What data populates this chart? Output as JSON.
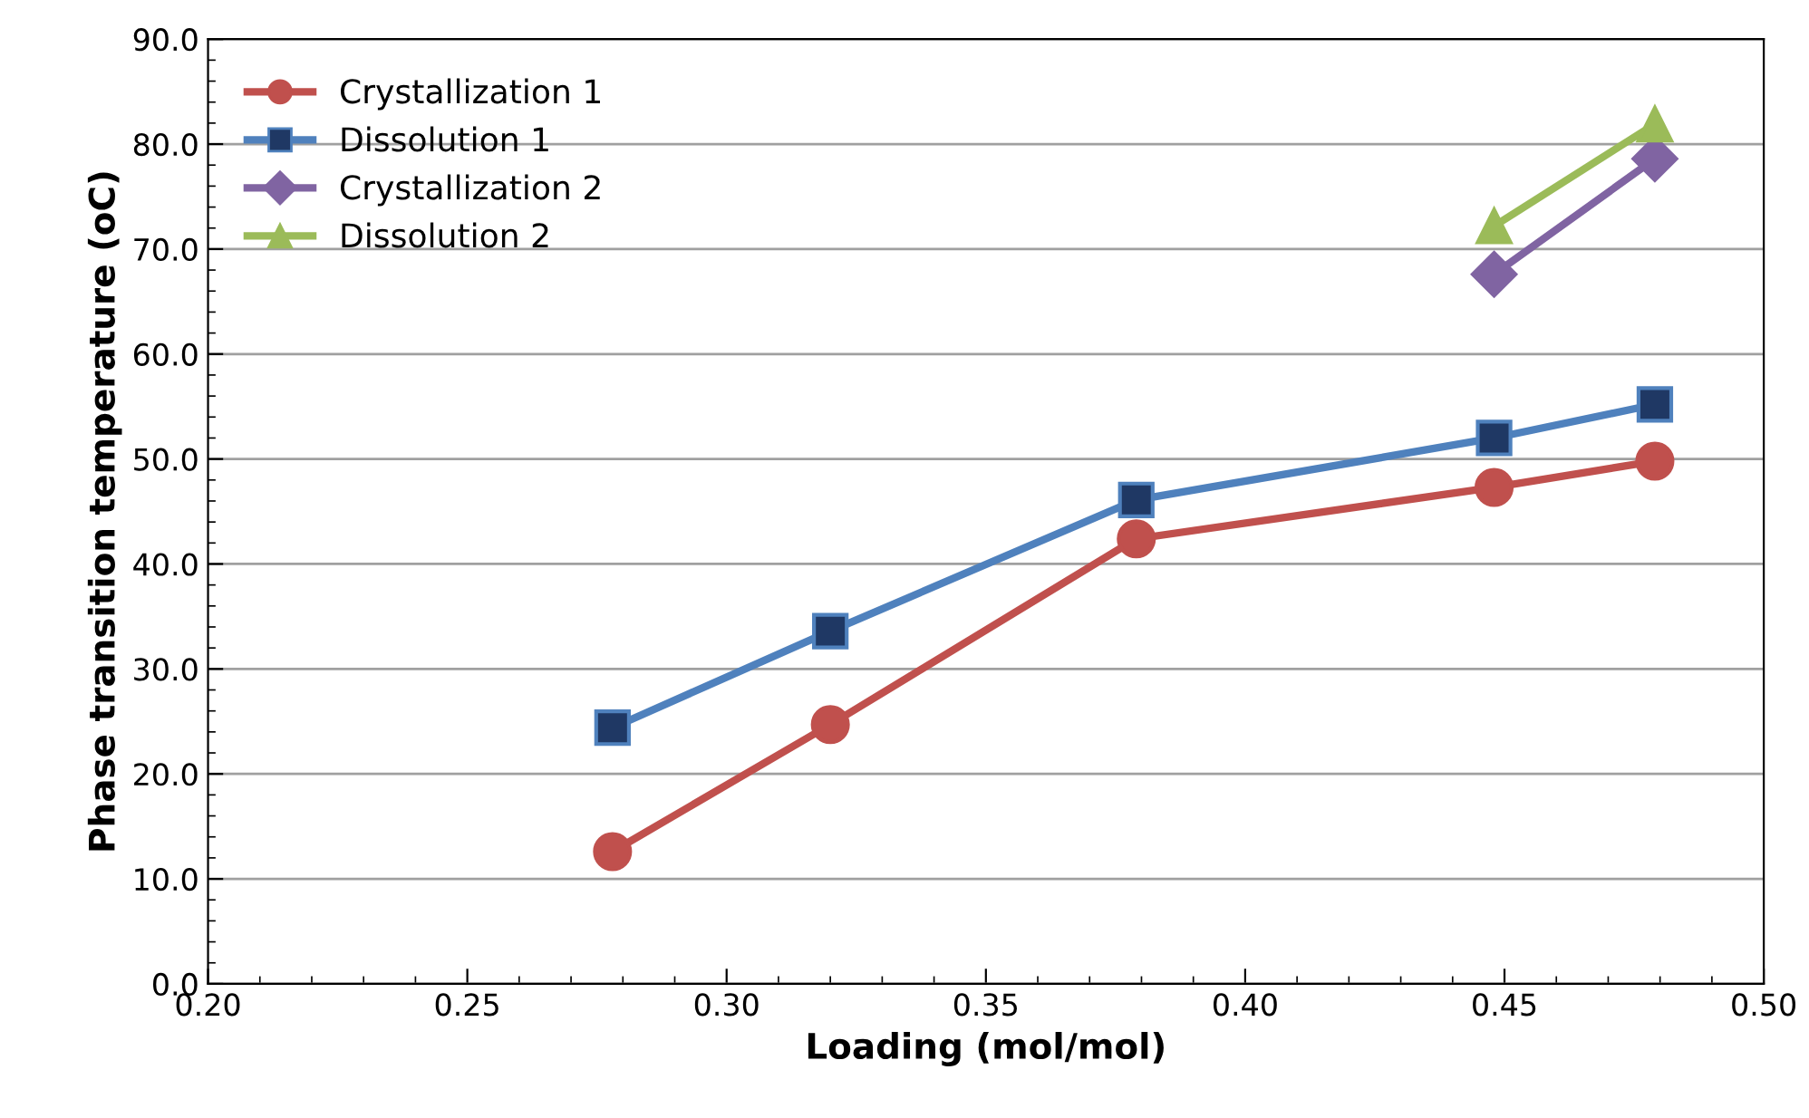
{
  "chart_data": {
    "type": "line",
    "xlabel": "Loading (mol/mol)",
    "ylabel": "Phase transition temperature (oC)",
    "xlim": [
      0.2,
      0.5
    ],
    "xticks": [
      {
        "value": 0.2,
        "label": "0.20"
      },
      {
        "value": 0.25,
        "label": "0.25"
      },
      {
        "value": 0.3,
        "label": "0.30"
      },
      {
        "value": 0.35,
        "label": "0.35"
      },
      {
        "value": 0.4,
        "label": "0.40"
      },
      {
        "value": 0.45,
        "label": "0.45"
      },
      {
        "value": 0.5,
        "label": "0.50"
      }
    ],
    "ylim": [
      0,
      90
    ],
    "yticks": [
      {
        "value": 0,
        "label": "0.0"
      },
      {
        "value": 10,
        "label": "10.0"
      },
      {
        "value": 20,
        "label": "20.0"
      },
      {
        "value": 30,
        "label": "30.0"
      },
      {
        "value": 40,
        "label": "40.0"
      },
      {
        "value": 50,
        "label": "50.0"
      },
      {
        "value": 60,
        "label": "60.0"
      },
      {
        "value": 70,
        "label": "70.0"
      },
      {
        "value": 80,
        "label": "80.0"
      },
      {
        "value": 90,
        "label": "90.0"
      }
    ],
    "grid": "y",
    "legend": "top left",
    "series": [
      {
        "name": "Crystallization 1",
        "color": "#c0504d",
        "marker": "circle",
        "x": [
          0.278,
          0.32,
          0.379,
          0.448,
          0.479
        ],
        "values": [
          12.6,
          24.7,
          42.4,
          47.3,
          49.8
        ]
      },
      {
        "name": "Dissolution 1",
        "color": "#4f81bd",
        "marker": "square",
        "x": [
          0.278,
          0.32,
          0.379,
          0.448,
          0.479
        ],
        "values": [
          24.4,
          33.6,
          46.1,
          52.0,
          55.2
        ]
      },
      {
        "name": "Crystallization 2",
        "color": "#8064a2",
        "marker": "diamond",
        "x": [
          0.448,
          0.479
        ],
        "values": [
          67.6,
          78.6
        ]
      },
      {
        "name": "Dissolution 2",
        "color": "#9bbb59",
        "marker": "triangle",
        "x": [
          0.448,
          0.479
        ],
        "values": [
          72.2,
          81.9
        ]
      }
    ]
  }
}
